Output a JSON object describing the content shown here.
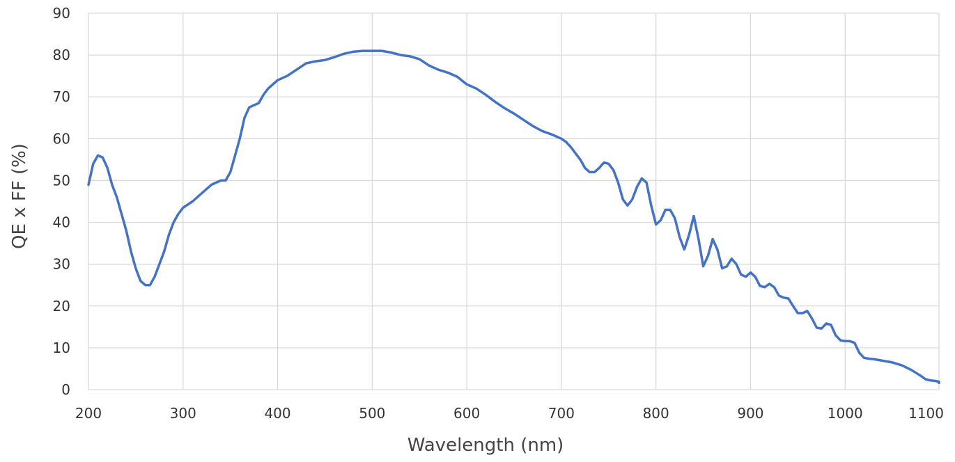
{
  "chart_data": {
    "type": "line",
    "title": "",
    "xlabel": "Wavelength (nm)",
    "ylabel": "QE x FF (%)",
    "xlim": [
      200,
      1100
    ],
    "ylim": [
      0,
      90
    ],
    "xticks": [
      200,
      300,
      400,
      500,
      600,
      700,
      800,
      900,
      1000,
      1100
    ],
    "yticks": [
      0,
      10,
      20,
      30,
      40,
      50,
      60,
      70,
      80,
      90
    ],
    "xtick_labels": [
      "200",
      "300",
      "400",
      "500",
      "600",
      "700",
      "800",
      "900",
      "1000",
      "1100"
    ],
    "ytick_labels": [
      "0",
      "10",
      "20",
      "30",
      "40",
      "50",
      "60",
      "70",
      "80",
      "90"
    ],
    "grid": true,
    "legend": "none",
    "colors": {
      "line": "#4472C4",
      "grid": "#d9d9d9",
      "text": "#333333"
    },
    "series": [
      {
        "points": [
          [
            200,
            49
          ],
          [
            205,
            54
          ],
          [
            210,
            56
          ],
          [
            215,
            55.5
          ],
          [
            220,
            53
          ],
          [
            225,
            49
          ],
          [
            230,
            46
          ],
          [
            235,
            42
          ],
          [
            240,
            38
          ],
          [
            245,
            33
          ],
          [
            250,
            29
          ],
          [
            255,
            26
          ],
          [
            260,
            25
          ],
          [
            265,
            25
          ],
          [
            270,
            27
          ],
          [
            275,
            30
          ],
          [
            280,
            33
          ],
          [
            285,
            37
          ],
          [
            290,
            40
          ],
          [
            295,
            42
          ],
          [
            300,
            43.5
          ],
          [
            310,
            45
          ],
          [
            320,
            47
          ],
          [
            330,
            49
          ],
          [
            340,
            50
          ],
          [
            345,
            50
          ],
          [
            350,
            52
          ],
          [
            355,
            56
          ],
          [
            360,
            60
          ],
          [
            365,
            65
          ],
          [
            370,
            67.5
          ],
          [
            375,
            68
          ],
          [
            380,
            68.5
          ],
          [
            385,
            70.5
          ],
          [
            390,
            72
          ],
          [
            395,
            73
          ],
          [
            400,
            74
          ],
          [
            410,
            75
          ],
          [
            420,
            76.5
          ],
          [
            430,
            78
          ],
          [
            440,
            78.5
          ],
          [
            450,
            78.8
          ],
          [
            460,
            79.5
          ],
          [
            470,
            80.3
          ],
          [
            480,
            80.8
          ],
          [
            490,
            81
          ],
          [
            500,
            81
          ],
          [
            510,
            81
          ],
          [
            520,
            80.6
          ],
          [
            530,
            80
          ],
          [
            540,
            79.7
          ],
          [
            550,
            79
          ],
          [
            560,
            77.5
          ],
          [
            570,
            76.5
          ],
          [
            580,
            75.8
          ],
          [
            590,
            74.8
          ],
          [
            600,
            73
          ],
          [
            610,
            72
          ],
          [
            620,
            70.5
          ],
          [
            630,
            68.8
          ],
          [
            640,
            67.3
          ],
          [
            650,
            66
          ],
          [
            660,
            64.5
          ],
          [
            670,
            63
          ],
          [
            680,
            61.8
          ],
          [
            690,
            61
          ],
          [
            700,
            60
          ],
          [
            705,
            59.2
          ],
          [
            710,
            58
          ],
          [
            715,
            56.5
          ],
          [
            720,
            55
          ],
          [
            725,
            53
          ],
          [
            730,
            52
          ],
          [
            735,
            52
          ],
          [
            740,
            53
          ],
          [
            745,
            54.3
          ],
          [
            750,
            54
          ],
          [
            755,
            52.5
          ],
          [
            760,
            49.5
          ],
          [
            765,
            45.5
          ],
          [
            770,
            44
          ],
          [
            775,
            45.5
          ],
          [
            780,
            48.5
          ],
          [
            785,
            50.5
          ],
          [
            790,
            49.5
          ],
          [
            795,
            44
          ],
          [
            800,
            39.5
          ],
          [
            805,
            40.5
          ],
          [
            810,
            43
          ],
          [
            815,
            43
          ],
          [
            820,
            41
          ],
          [
            825,
            36.5
          ],
          [
            830,
            33.5
          ],
          [
            835,
            37
          ],
          [
            840,
            41.5
          ],
          [
            845,
            36
          ],
          [
            850,
            29.5
          ],
          [
            855,
            32
          ],
          [
            860,
            36
          ],
          [
            865,
            33.5
          ],
          [
            870,
            29
          ],
          [
            875,
            29.5
          ],
          [
            880,
            31.3
          ],
          [
            885,
            30
          ],
          [
            890,
            27.5
          ],
          [
            895,
            27
          ],
          [
            900,
            28
          ],
          [
            905,
            27
          ],
          [
            910,
            24.8
          ],
          [
            915,
            24.5
          ],
          [
            920,
            25.3
          ],
          [
            925,
            24.5
          ],
          [
            930,
            22.5
          ],
          [
            935,
            22
          ],
          [
            940,
            21.8
          ],
          [
            945,
            20
          ],
          [
            950,
            18.3
          ],
          [
            955,
            18.3
          ],
          [
            960,
            18.8
          ],
          [
            965,
            17
          ],
          [
            970,
            14.8
          ],
          [
            975,
            14.6
          ],
          [
            980,
            15.8
          ],
          [
            985,
            15.5
          ],
          [
            990,
            13
          ],
          [
            995,
            11.8
          ],
          [
            1000,
            11.6
          ],
          [
            1005,
            11.6
          ],
          [
            1010,
            11.2
          ],
          [
            1015,
            8.8
          ],
          [
            1020,
            7.6
          ],
          [
            1025,
            7.4
          ],
          [
            1030,
            7.3
          ],
          [
            1040,
            6.9
          ],
          [
            1050,
            6.5
          ],
          [
            1060,
            5.8
          ],
          [
            1070,
            4.7
          ],
          [
            1080,
            3.3
          ],
          [
            1085,
            2.5
          ],
          [
            1090,
            2.2
          ],
          [
            1095,
            2.1
          ],
          [
            1100,
            1.9
          ],
          [
            1110,
            1.7
          ],
          [
            1115,
            1.6
          ]
        ]
      }
    ]
  }
}
